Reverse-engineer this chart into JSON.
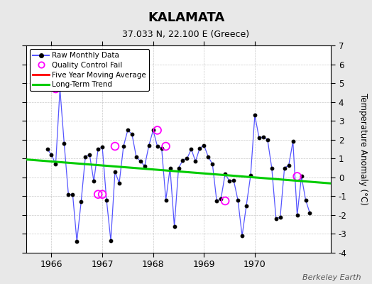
{
  "title": "KALAMATA",
  "subtitle": "37.033 N, 22.100 E (Greece)",
  "ylabel": "Temperature Anomaly (°C)",
  "watermark": "Berkeley Earth",
  "ylim": [
    -4,
    7
  ],
  "yticks": [
    -4,
    -3,
    -2,
    -1,
    0,
    1,
    2,
    3,
    4,
    5,
    6,
    7
  ],
  "xlim": [
    1965.5,
    1971.5
  ],
  "xticks": [
    1966,
    1967,
    1968,
    1969,
    1970
  ],
  "background_color": "#e8e8e8",
  "plot_bg_color": "#ffffff",
  "raw_x": [
    1965.917,
    1966.0,
    1966.083,
    1966.167,
    1966.25,
    1966.333,
    1966.417,
    1966.5,
    1966.583,
    1966.667,
    1966.75,
    1966.833,
    1966.917,
    1967.0,
    1967.083,
    1967.167,
    1967.25,
    1967.333,
    1967.417,
    1967.5,
    1967.583,
    1967.667,
    1967.75,
    1967.833,
    1967.917,
    1968.0,
    1968.083,
    1968.167,
    1968.25,
    1968.333,
    1968.417,
    1968.5,
    1968.583,
    1968.667,
    1968.75,
    1968.833,
    1968.917,
    1969.0,
    1969.083,
    1969.167,
    1969.25,
    1969.333,
    1969.417,
    1969.5,
    1969.583,
    1969.667,
    1969.75,
    1969.833,
    1969.917,
    1970.0,
    1970.083,
    1970.167,
    1970.25,
    1970.333,
    1970.417,
    1970.5,
    1970.583,
    1970.667,
    1970.75,
    1970.833,
    1970.917,
    1971.0,
    1971.083
  ],
  "raw_y": [
    1.5,
    1.2,
    0.7,
    4.7,
    1.8,
    -0.9,
    -0.9,
    -3.4,
    -1.3,
    1.1,
    1.2,
    -0.2,
    1.5,
    1.6,
    -1.2,
    -3.35,
    0.3,
    -0.3,
    1.65,
    2.5,
    2.3,
    1.1,
    0.85,
    0.6,
    1.7,
    2.5,
    1.65,
    1.55,
    -1.2,
    0.5,
    -2.6,
    0.5,
    0.9,
    1.0,
    1.5,
    0.85,
    1.55,
    1.7,
    1.1,
    0.7,
    -1.25,
    -1.15,
    0.2,
    -0.2,
    -0.15,
    -1.2,
    -3.1,
    -1.5,
    0.1,
    3.3,
    2.1,
    2.15,
    2.0,
    0.5,
    -2.2,
    -2.1,
    0.5,
    0.65,
    1.9,
    -2.0,
    0.05,
    -1.2,
    -1.9
  ],
  "qc_fail_x": [
    1966.083,
    1966.917,
    1967.0,
    1967.25,
    1968.083,
    1968.25,
    1969.417,
    1970.833
  ],
  "qc_fail_y": [
    4.7,
    -0.9,
    -0.9,
    1.65,
    2.5,
    1.65,
    -1.25,
    0.05
  ],
  "trend_x": [
    1965.5,
    1971.5
  ],
  "trend_y": [
    0.95,
    -0.32
  ],
  "line_color": "#5555ff",
  "dot_color": "#000000",
  "qc_color": "#ff00ff",
  "trend_color": "#00cc00",
  "ma_color": "#ff0000",
  "legend_labels": [
    "Raw Monthly Data",
    "Quality Control Fail",
    "Five Year Moving Average",
    "Long-Term Trend"
  ]
}
